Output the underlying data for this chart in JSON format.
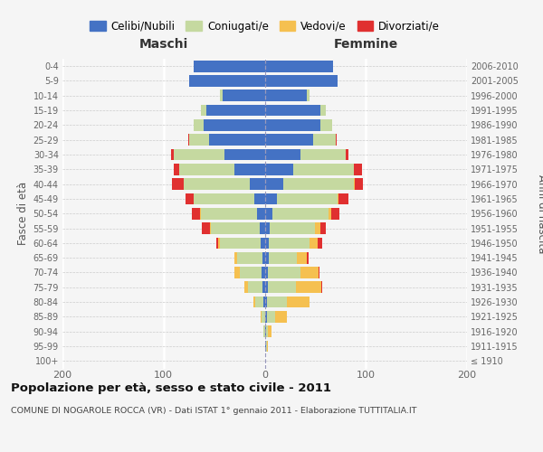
{
  "age_groups": [
    "100+",
    "95-99",
    "90-94",
    "85-89",
    "80-84",
    "75-79",
    "70-74",
    "65-69",
    "60-64",
    "55-59",
    "50-54",
    "45-49",
    "40-44",
    "35-39",
    "30-34",
    "25-29",
    "20-24",
    "15-19",
    "10-14",
    "5-9",
    "0-4"
  ],
  "birth_years": [
    "≤ 1910",
    "1911-1915",
    "1916-1920",
    "1921-1925",
    "1926-1930",
    "1931-1935",
    "1936-1940",
    "1941-1945",
    "1946-1950",
    "1951-1955",
    "1956-1960",
    "1961-1965",
    "1966-1970",
    "1971-1975",
    "1976-1980",
    "1981-1985",
    "1986-1990",
    "1991-1995",
    "1996-2000",
    "2001-2005",
    "2006-2010"
  ],
  "male_celibe": [
    0,
    0,
    0,
    0,
    1,
    2,
    3,
    2,
    4,
    5,
    8,
    10,
    15,
    30,
    40,
    55,
    60,
    58,
    42,
    75,
    70
  ],
  "male_coniugato": [
    0,
    0,
    1,
    3,
    8,
    15,
    22,
    25,
    40,
    48,
    55,
    60,
    65,
    55,
    50,
    20,
    10,
    5,
    2,
    0,
    0
  ],
  "male_vedovo": [
    0,
    0,
    0,
    1,
    2,
    3,
    5,
    3,
    2,
    1,
    1,
    0,
    0,
    0,
    0,
    0,
    0,
    0,
    0,
    0,
    0
  ],
  "male_divorziato": [
    0,
    0,
    0,
    0,
    0,
    0,
    0,
    0,
    2,
    8,
    8,
    8,
    12,
    5,
    3,
    1,
    0,
    0,
    0,
    0,
    0
  ],
  "female_nubile": [
    0,
    1,
    1,
    2,
    2,
    3,
    3,
    4,
    4,
    5,
    8,
    12,
    18,
    28,
    35,
    48,
    55,
    55,
    42,
    72,
    68
  ],
  "female_coniugata": [
    0,
    1,
    2,
    8,
    20,
    28,
    32,
    28,
    40,
    45,
    55,
    60,
    70,
    60,
    45,
    22,
    12,
    5,
    2,
    0,
    0
  ],
  "female_vedova": [
    0,
    1,
    4,
    12,
    22,
    25,
    18,
    10,
    8,
    5,
    3,
    1,
    1,
    0,
    0,
    0,
    0,
    0,
    0,
    0,
    0
  ],
  "female_divorziata": [
    0,
    0,
    0,
    0,
    0,
    1,
    1,
    1,
    5,
    5,
    8,
    10,
    8,
    8,
    3,
    1,
    0,
    0,
    0,
    0,
    0
  ],
  "color_celibe": "#4472C4",
  "color_coniugato": "#c5d9a0",
  "color_vedovo": "#f5c050",
  "color_divorziato": "#e03030",
  "xlim": 200,
  "xticks": [
    -200,
    -100,
    0,
    100,
    200
  ],
  "xticklabels": [
    "200",
    "100",
    "0",
    "100",
    "200"
  ],
  "title": "Popolazione per età, sesso e stato civile - 2011",
  "subtitle": "COMUNE DI NOGAROLE ROCCA (VR) - Dati ISTAT 1° gennaio 2011 - Elaborazione TUTTITALIA.IT",
  "ylabel_left": "Fasce di età",
  "ylabel_right": "Anni di nascita",
  "legend_labels": [
    "Celibi/Nubili",
    "Coniugati/e",
    "Vedovi/e",
    "Divorziati/e"
  ],
  "maschi_label": "Maschi",
  "femmine_label": "Femmine",
  "background_color": "#f5f5f5",
  "bar_height": 0.78
}
